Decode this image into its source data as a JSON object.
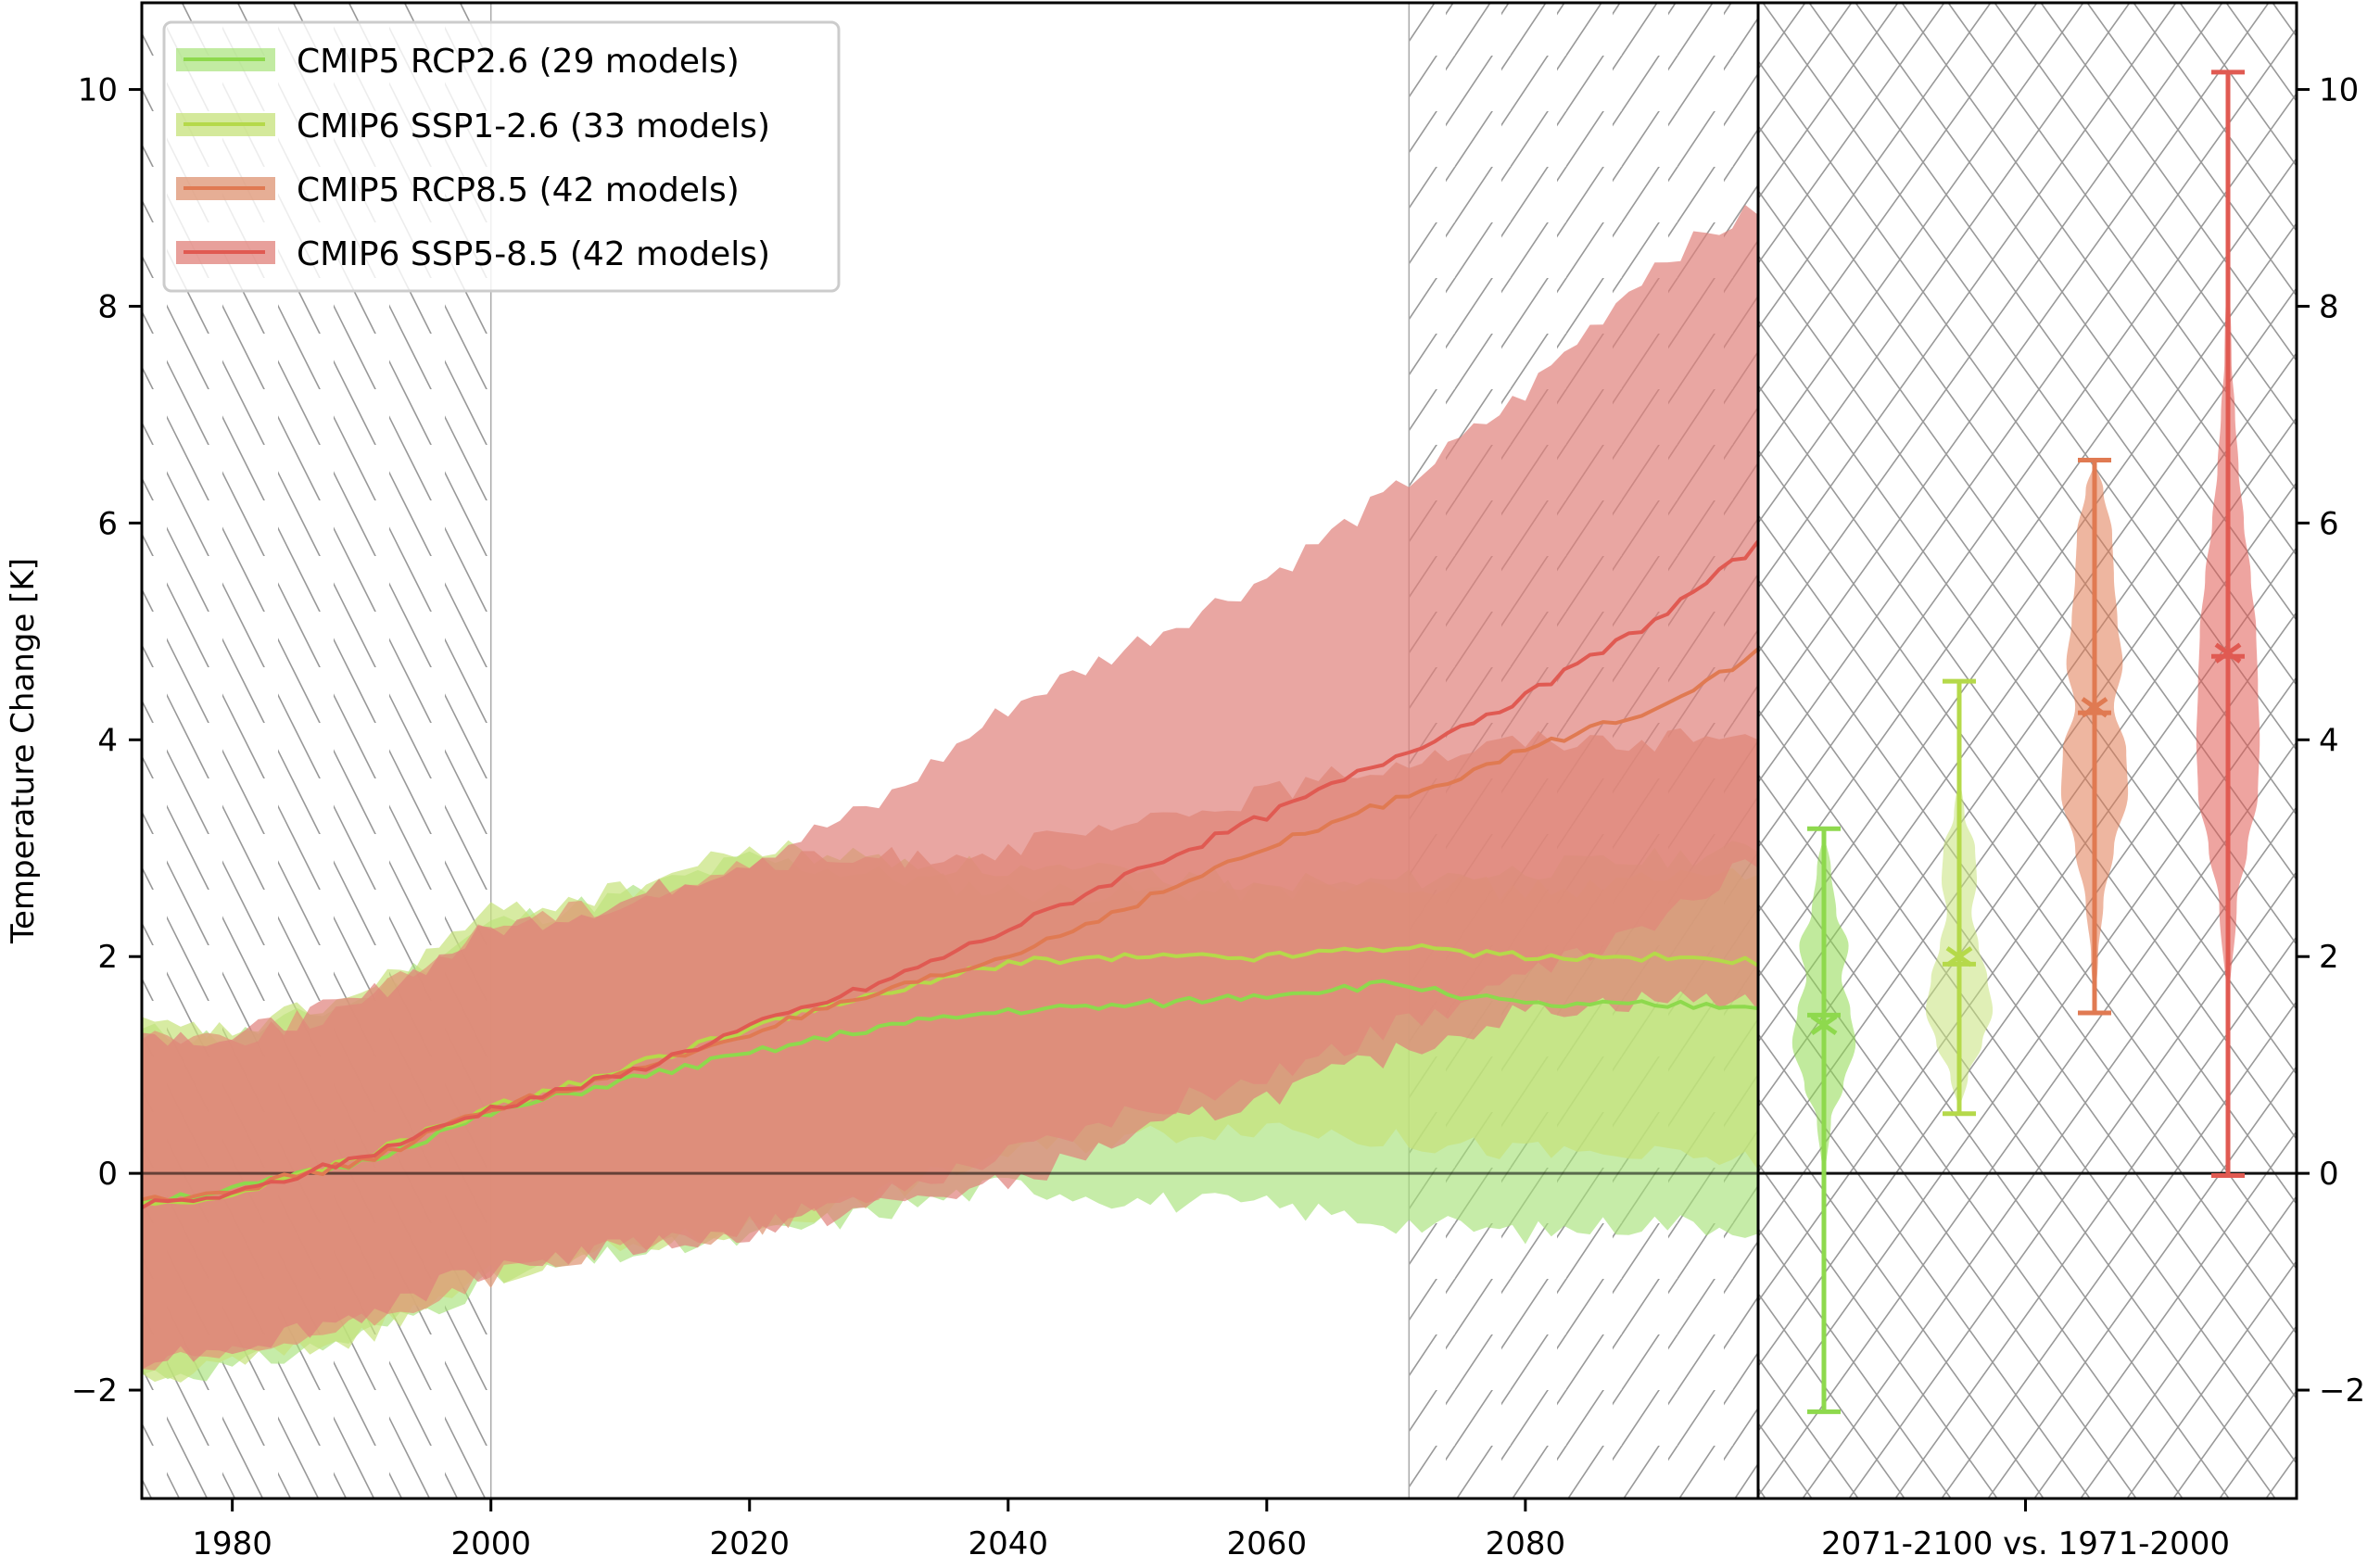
{
  "chart_data": {
    "type": "area",
    "title": "",
    "xlabel": "",
    "ylabel": "Temperature Change [K]",
    "xlim": [
      1973,
      2098
    ],
    "ylim": [
      -3,
      10.8
    ],
    "grid": false,
    "legend_position": "top-left",
    "x_ticks": [
      "1980",
      "2000",
      "2020",
      "2040",
      "2060",
      "2080"
    ],
    "x_tick_values": [
      1980,
      2000,
      2020,
      2040,
      2060,
      2080
    ],
    "y_ticks": [
      "−2",
      "0",
      "2",
      "4",
      "6",
      "8",
      "10"
    ],
    "y_tick_values": [
      -2,
      0,
      2,
      4,
      6,
      8,
      10
    ],
    "hatched_periods": [
      {
        "label": "1971-2000",
        "start": 1971,
        "end": 2000
      },
      {
        "label": "2071-2100",
        "start": 2071,
        "end": 2100
      }
    ],
    "reference_line": 0,
    "series": [
      {
        "name": "CMIP5 RCP2.6 (29 models)",
        "color": "#8ed94d",
        "band_color": "#a8e27a",
        "x": [
          1973,
          1980,
          1990,
          2000,
          2010,
          2020,
          2030,
          2040,
          2050,
          2060,
          2070,
          2080,
          2090,
          2098
        ],
        "mean": [
          -0.25,
          -0.15,
          0.1,
          0.55,
          0.85,
          1.1,
          1.35,
          1.5,
          1.55,
          1.65,
          1.75,
          1.55,
          1.55,
          1.55
        ],
        "min": [
          -1.85,
          -1.8,
          -1.5,
          -1.0,
          -0.75,
          -0.6,
          -0.35,
          -0.1,
          -0.25,
          -0.3,
          -0.45,
          -0.55,
          -0.45,
          -0.5
        ],
        "max": [
          1.3,
          1.25,
          1.6,
          2.3,
          2.55,
          2.9,
          2.75,
          2.6,
          2.6,
          2.6,
          2.7,
          2.8,
          2.9,
          3.0
        ]
      },
      {
        "name": "CMIP6 SSP1-2.6 (33 models)",
        "color": "#b5d94a",
        "band_color": "#c6e27a",
        "x": [
          1973,
          1980,
          1990,
          2000,
          2010,
          2020,
          2030,
          2040,
          2050,
          2060,
          2070,
          2080,
          2090,
          2098
        ],
        "mean": [
          -0.3,
          -0.2,
          0.15,
          0.6,
          0.95,
          1.35,
          1.65,
          1.95,
          2.0,
          2.0,
          2.1,
          2.0,
          2.0,
          1.95
        ],
        "min": [
          -1.95,
          -1.75,
          -1.5,
          -0.95,
          -0.7,
          -0.5,
          -0.2,
          0.2,
          0.35,
          0.45,
          0.3,
          0.2,
          0.15,
          0.1
        ],
        "max": [
          1.35,
          1.3,
          1.65,
          2.4,
          2.6,
          3.0,
          2.9,
          2.8,
          2.75,
          2.7,
          2.7,
          2.6,
          2.7,
          2.8
        ]
      },
      {
        "name": "CMIP5 RCP8.5 (42 models)",
        "color": "#e07a52",
        "band_color": "#e09a7a",
        "x": [
          1973,
          1980,
          1990,
          2000,
          2010,
          2020,
          2030,
          2040,
          2050,
          2060,
          2070,
          2080,
          2090,
          2098
        ],
        "mean": [
          -0.25,
          -0.15,
          0.1,
          0.6,
          0.9,
          1.3,
          1.65,
          2.0,
          2.5,
          3.0,
          3.45,
          3.9,
          4.3,
          4.8
        ],
        "min": [
          -1.8,
          -1.7,
          -1.4,
          -0.95,
          -0.7,
          -0.5,
          -0.2,
          0.2,
          0.55,
          0.9,
          1.35,
          1.8,
          2.3,
          2.9
        ],
        "max": [
          1.3,
          1.25,
          1.55,
          2.3,
          2.5,
          2.85,
          2.9,
          3.0,
          3.2,
          3.5,
          3.8,
          4.0,
          4.0,
          4.05
        ]
      },
      {
        "name": "CMIP6 SSP5-8.5 (42 models)",
        "color": "#e05a52",
        "band_color": "#e0807a",
        "x": [
          1973,
          1980,
          1990,
          2000,
          2010,
          2020,
          2030,
          2040,
          2050,
          2060,
          2070,
          2080,
          2090,
          2098
        ],
        "mean": [
          -0.3,
          -0.2,
          0.15,
          0.6,
          0.9,
          1.35,
          1.75,
          2.25,
          2.8,
          3.3,
          3.85,
          4.4,
          5.1,
          5.8
        ],
        "min": [
          -1.7,
          -1.6,
          -1.3,
          -0.85,
          -0.7,
          -0.55,
          -0.3,
          -0.1,
          0.35,
          0.7,
          1.1,
          1.5,
          1.6,
          1.6
        ],
        "max": [
          1.3,
          1.25,
          1.6,
          2.25,
          2.5,
          2.9,
          3.4,
          4.3,
          4.9,
          5.5,
          6.3,
          7.2,
          8.4,
          8.9
        ]
      }
    ],
    "violins": {
      "xlabel": "2071-2100 vs. 1971-2000",
      "items": [
        {
          "name": "CMIP5 RCP2.6",
          "color": "#8ed94d",
          "min": -2.2,
          "max": 3.18,
          "mean": 1.46,
          "median": 1.37,
          "density_y": [
            -2.2,
            -1.0,
            0.0,
            0.5,
            0.8,
            1.2,
            1.5,
            1.8,
            2.1,
            2.4,
            2.8,
            3.18
          ],
          "density_w": [
            0.0,
            0.02,
            0.05,
            0.2,
            0.55,
            0.9,
            0.75,
            0.5,
            0.7,
            0.35,
            0.2,
            0.0
          ]
        },
        {
          "name": "CMIP6 SSP1-2.6",
          "color": "#b5d94a",
          "band_color": "#c6e27a",
          "min": 0.55,
          "max": 4.54,
          "mean": 1.93,
          "median": 2.0,
          "density_y": [
            0.55,
            0.9,
            1.2,
            1.5,
            1.8,
            2.1,
            2.4,
            2.7,
            3.0,
            3.3,
            3.7,
            4.54
          ],
          "density_w": [
            0.0,
            0.25,
            0.65,
            0.95,
            0.8,
            0.55,
            0.35,
            0.5,
            0.45,
            0.15,
            0.02,
            0.0
          ]
        },
        {
          "name": "CMIP5 RCP8.5",
          "color": "#e07a52",
          "min": 1.48,
          "max": 6.58,
          "mean": 4.25,
          "median": 4.3,
          "density_y": [
            1.48,
            2.0,
            2.5,
            3.0,
            3.5,
            3.9,
            4.3,
            4.7,
            5.1,
            5.5,
            5.9,
            6.3,
            6.58
          ],
          "density_w": [
            0.0,
            0.1,
            0.25,
            0.55,
            0.95,
            0.9,
            0.55,
            0.8,
            0.65,
            0.55,
            0.5,
            0.25,
            0.0
          ]
        },
        {
          "name": "CMIP6 SSP5-8.5",
          "color": "#e05a52",
          "min": -0.02,
          "max": 10.16,
          "mean": 4.77,
          "median": 4.8,
          "density_y": [
            -0.02,
            1.5,
            2.5,
            3.0,
            3.5,
            4.0,
            4.5,
            5.0,
            5.5,
            6.0,
            6.5,
            7.0,
            7.5,
            8.5,
            10.16
          ],
          "density_w": [
            0.0,
            0.02,
            0.25,
            0.55,
            0.85,
            0.9,
            0.85,
            0.8,
            0.65,
            0.45,
            0.3,
            0.2,
            0.1,
            0.03,
            0.0
          ]
        }
      ]
    }
  }
}
